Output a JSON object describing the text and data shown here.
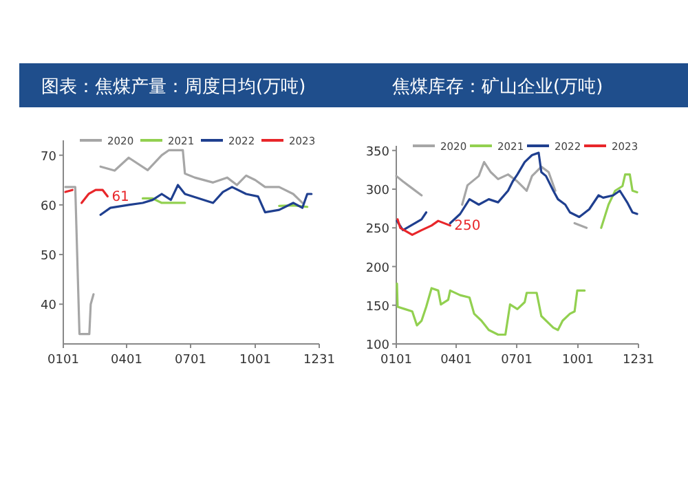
{
  "chart_data": [
    {
      "type": "line",
      "title": "图表：焦煤产量：周度日均(万吨)",
      "legend": "top",
      "line_style": "solid",
      "marker": "none",
      "xlim": [
        "--01-01",
        "--12-31"
      ],
      "xticks": [
        {
          "value": "--01-01",
          "label": "0101"
        },
        {
          "value": "--04-01",
          "label": "0401"
        },
        {
          "value": "--07-01",
          "label": "0701"
        },
        {
          "value": "--10-01",
          "label": "1001"
        },
        {
          "value": "--12-31",
          "label": "1231"
        }
      ],
      "ylim": [
        32,
        73
      ],
      "yticks": [
        40,
        50,
        60,
        70
      ],
      "series": [
        {
          "name": "2020",
          "color": "#a6a6a6",
          "x": [
            "--01-04",
            "--01-18",
            "--01-24",
            "--02-07",
            "--02-09",
            "--02-13",
            "--02-19",
            "--02-23",
            "--03-15",
            "--04-04",
            "--05-01",
            "--05-21",
            "--05-31",
            "--06-20",
            "--06-23",
            "--07-07",
            "--08-02",
            "--08-22",
            "--09-05",
            "--09-18",
            "--10-01",
            "--10-15",
            "--11-04",
            "--11-24",
            "--12-07"
          ],
          "values": [
            63.6,
            63.6,
            34,
            34,
            40,
            42,
            null,
            67.7,
            66.9,
            69.5,
            67,
            70,
            71,
            71,
            66.3,
            65.5,
            64.5,
            65.5,
            64,
            65.9,
            65,
            63.6,
            63.6,
            62.2,
            60.4
          ]
        },
        {
          "name": "2021",
          "color": "#92d050",
          "x": [
            "--04-24",
            "--05-08",
            "--05-21",
            "--06-23",
            "--06-29",
            "--10-27",
            "--11-04",
            "--11-24",
            "--12-14"
          ],
          "values": [
            61.3,
            61.3,
            60.4,
            60.4,
            null,
            null,
            59.8,
            59.9,
            59.6
          ]
        },
        {
          "name": "2022",
          "color": "#1f3f8f",
          "x": [
            "--02-23",
            "--03-09",
            "--04-04",
            "--04-24",
            "--05-08",
            "--05-21",
            "--06-03",
            "--06-13",
            "--06-23",
            "--07-13",
            "--08-02",
            "--08-16",
            "--08-29",
            "--09-18",
            "--10-05",
            "--10-15",
            "--11-04",
            "--11-24",
            "--12-07",
            "--12-14",
            "--12-20"
          ],
          "values": [
            58,
            59.4,
            60,
            60.4,
            61,
            62.2,
            61,
            64,
            62.2,
            61.3,
            60.4,
            62.6,
            63.6,
            62.2,
            61.7,
            58.5,
            59,
            60.4,
            59.4,
            62.2,
            62.2
          ]
        },
        {
          "name": "2023",
          "color": "#e8262a",
          "x": [
            "--01-04",
            "--01-14",
            "--01-17",
            "--01-27",
            "--02-06",
            "--02-16",
            "--02-26",
            "--03-05"
          ],
          "values": [
            62.6,
            63,
            null,
            60.4,
            62.2,
            63,
            63,
            61.7
          ]
        }
      ],
      "annotations": [
        {
          "text": "61",
          "x": "--03-05",
          "y": 61.7
        }
      ]
    },
    {
      "type": "line",
      "title": "焦煤库存：矿山企业(万吨)",
      "legend": "top",
      "line_style": "solid",
      "marker": "none",
      "xlim": [
        "--01-01",
        "--12-31"
      ],
      "xticks": [
        {
          "value": "--01-01",
          "label": "0101"
        },
        {
          "value": "--04-01",
          "label": "0401"
        },
        {
          "value": "--07-01",
          "label": "0701"
        },
        {
          "value": "--10-01",
          "label": "1001"
        },
        {
          "value": "--12-31",
          "label": "1231"
        }
      ],
      "ylim": [
        100,
        356
      ],
      "yticks": [
        100,
        150,
        200,
        250,
        300,
        350
      ],
      "series": [
        {
          "name": "2020",
          "color": "#a6a6a6",
          "x": [
            "--01-01",
            "--01-11",
            "--01-25",
            "--02-08",
            "--02-12",
            "--04-10",
            "--04-18",
            "--05-05",
            "--05-13",
            "--05-23",
            "--06-03",
            "--06-18",
            "--07-02",
            "--07-16",
            "--07-24",
            "--08-07",
            "--08-18",
            "--08-28",
            "--09-05",
            "--09-26",
            "--10-14"
          ],
          "values": [
            317,
            310,
            301,
            292,
            null,
            280,
            305,
            317,
            335,
            322,
            313,
            319,
            310,
            298,
            317,
            329,
            322,
            298,
            null,
            256,
            250
          ]
        },
        {
          "name": "2021",
          "color": "#92d050",
          "x": [
            "--01-02",
            "--01-03",
            "--01-14",
            "--01-25",
            "--02-01",
            "--02-08",
            "--02-15",
            "--02-23",
            "--03-05",
            "--03-09",
            "--03-20",
            "--03-23",
            "--04-07",
            "--04-21",
            "--04-28",
            "--05-09",
            "--05-20",
            "--06-03",
            "--06-14",
            "--06-21",
            "--07-02",
            "--07-13",
            "--07-16",
            "--07-31",
            "--08-07",
            "--08-25",
            "--09-01",
            "--09-08",
            "--09-19",
            "--09-26",
            "--09-30",
            "--10-11",
            "--10-27",
            "--11-05",
            "--11-16",
            "--11-26",
            "--12-07",
            "--12-11",
            "--12-18",
            "--12-22",
            "--12-29"
          ],
          "values": [
            178,
            148,
            145,
            142,
            124,
            130,
            148,
            172,
            169,
            151,
            157,
            169,
            163,
            160,
            139,
            130,
            118,
            112,
            112,
            151,
            145,
            154,
            166,
            166,
            136,
            121,
            118,
            130,
            139,
            142,
            169,
            169,
            null,
            250,
            280,
            298,
            304,
            319,
            319,
            298,
            296
          ]
        },
        {
          "name": "2022",
          "color": "#1f3f8f",
          "x": [
            "--01-02",
            "--01-11",
            "--02-08",
            "--02-15",
            "--02-19",
            "--03-23",
            "--04-07",
            "--04-21",
            "--05-05",
            "--05-20",
            "--06-03",
            "--06-18",
            "--06-25",
            "--07-02",
            "--07-13",
            "--07-24",
            "--08-03",
            "--08-07",
            "--08-14",
            "--08-25",
            "--09-01",
            "--09-12",
            "--09-19",
            "--10-03",
            "--10-18",
            "--11-01",
            "--11-08",
            "--11-23",
            "--12-03",
            "--12-14",
            "--12-22",
            "--12-29"
          ],
          "values": [
            259,
            247,
            261,
            270,
            null,
            256,
            268,
            287,
            280,
            287,
            283,
            298,
            310,
            319,
            335,
            344,
            347,
            322,
            317,
            298,
            287,
            280,
            270,
            264,
            274,
            292,
            289,
            292,
            298,
            283,
            270,
            268
          ]
        },
        {
          "name": "2023",
          "color": "#e8262a",
          "x": [
            "--01-03",
            "--01-07",
            "--01-25",
            "--02-08",
            "--02-23",
            "--03-05",
            "--03-23"
          ],
          "values": [
            261,
            250,
            241,
            247,
            253,
            259,
            253
          ]
        }
      ],
      "annotations": [
        {
          "text": "250",
          "x": "--03-23",
          "y": 253
        }
      ]
    }
  ]
}
